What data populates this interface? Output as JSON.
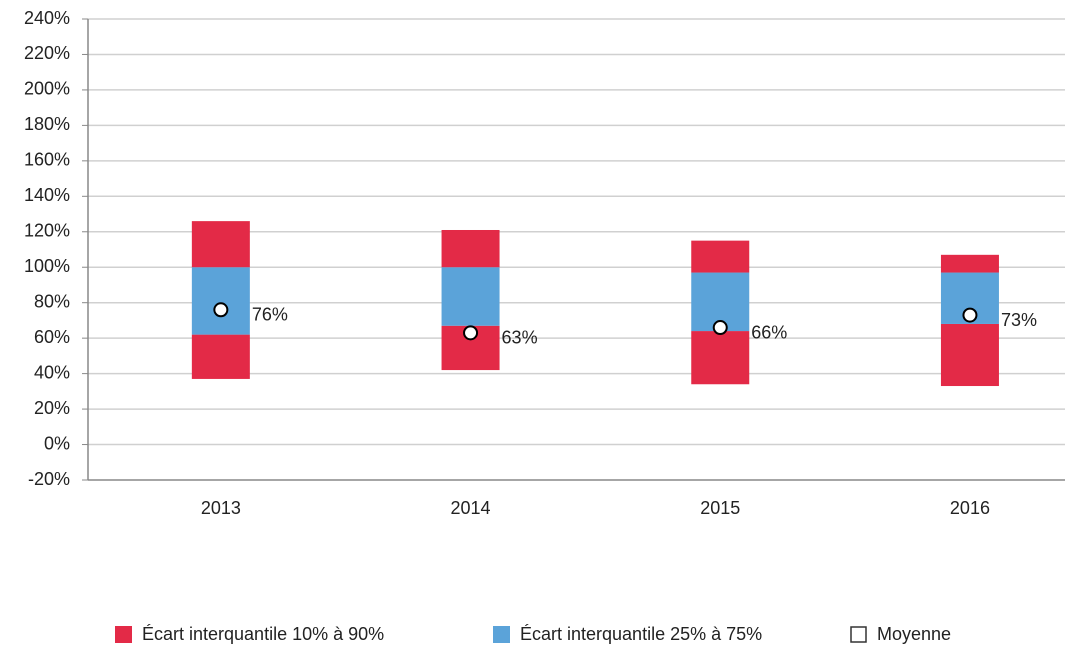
{
  "chart_data": {
    "type": "floating-box",
    "categories": [
      "2013",
      "2014",
      "2015",
      "2016"
    ],
    "series": [
      {
        "name": "Écart interquantile 10% à 90%",
        "color": "#e32a47",
        "low": [
          37,
          42,
          34,
          33
        ],
        "high": [
          126,
          121,
          115,
          107
        ]
      },
      {
        "name": "Écart interquantile 25% à 75%",
        "color": "#5ba3d9",
        "low": [
          62,
          67,
          64,
          68
        ],
        "high": [
          100,
          100,
          97,
          97
        ]
      },
      {
        "name": "Moyenne",
        "values": [
          76,
          63,
          66,
          73
        ],
        "value_labels": [
          "76%",
          "63%",
          "66%",
          "73%"
        ]
      }
    ],
    "ylim": [
      -20,
      240
    ],
    "yticks": [
      {
        "value": -20,
        "label": "-20%"
      },
      {
        "value": 0,
        "label": "0%"
      },
      {
        "value": 20,
        "label": "20%"
      },
      {
        "value": 40,
        "label": "40%"
      },
      {
        "value": 60,
        "label": "60%"
      },
      {
        "value": 80,
        "label": "80%"
      },
      {
        "value": 100,
        "label": "100%"
      },
      {
        "value": 120,
        "label": "120%"
      },
      {
        "value": 140,
        "label": "140%"
      },
      {
        "value": 160,
        "label": "160%"
      },
      {
        "value": 180,
        "label": "180%"
      },
      {
        "value": 200,
        "label": "200%"
      },
      {
        "value": 220,
        "label": "220%"
      },
      {
        "value": 240,
        "label": "240%"
      }
    ],
    "grid": true
  }
}
